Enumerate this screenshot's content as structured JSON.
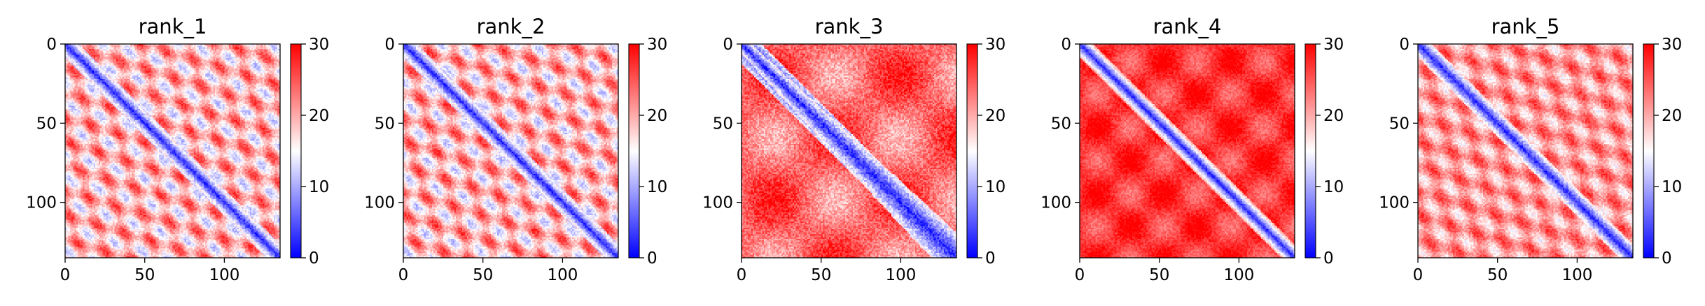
{
  "chart_data": {
    "type": "heatmap",
    "colormap": "bwr",
    "panels": [
      {
        "title": "rank_1",
        "pattern": "diagonal-with-bands"
      },
      {
        "title": "rank_2",
        "pattern": "diagonal-with-bands"
      },
      {
        "title": "rank_3",
        "pattern": "diagonal-with-blocks"
      },
      {
        "title": "rank_4",
        "pattern": "diagonal-sharp"
      },
      {
        "title": "rank_5",
        "pattern": "diagonal-with-faint-bands"
      }
    ],
    "size": 135,
    "x_ticks": [
      0,
      50,
      100
    ],
    "y_ticks": [
      0,
      50,
      100
    ],
    "xlim": [
      0,
      135
    ],
    "ylim": [
      135,
      0
    ],
    "colorbar": {
      "min": 0,
      "max": 30,
      "ticks": [
        0,
        10,
        20,
        30
      ]
    },
    "colors": {
      "low": "#0000ff",
      "mid": "#ffffff",
      "high": "#ff0000"
    }
  }
}
